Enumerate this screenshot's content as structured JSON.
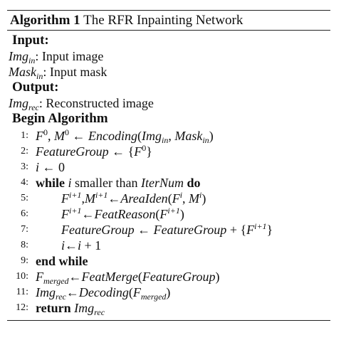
{
  "algorithm": {
    "label": "Algorithm 1",
    "title": "The RFR Inpainting Network",
    "input_header": "Input:",
    "inputs": [
      {
        "var": "Img",
        "sub": "in",
        "desc": ": Input image"
      },
      {
        "var": "Mask",
        "sub": "in",
        "desc": ": Input mask"
      }
    ],
    "output_header": "Output:",
    "outputs": [
      {
        "var": "Img",
        "sub": "rec",
        "desc": ": Reconstructed image"
      }
    ],
    "begin_header": "Begin Algorithm",
    "keywords": {
      "while": "while",
      "do": "do",
      "end_while": "end while",
      "return": "return"
    },
    "lines": [
      {
        "num": "1:",
        "text": "F^0, M^0 ← Encoding(Img_in, Mask_in)"
      },
      {
        "num": "2:",
        "text": "FeatureGroup ← {F^0}"
      },
      {
        "num": "3:",
        "text": "i ← 0"
      },
      {
        "num": "4:",
        "text": "while i smaller than IterNum do",
        "cond_text": "smaller than"
      },
      {
        "num": "5:",
        "text": "F^{i+1},M^{i+1} ← AreaIden(F^i, M^i)"
      },
      {
        "num": "6:",
        "text": "F^{i+1} ← FeatReason(F^{i+1})"
      },
      {
        "num": "7:",
        "text": "FeatureGroup ← FeatureGroup + {F^{i+1}}"
      },
      {
        "num": "8:",
        "text": "i ← i + 1"
      },
      {
        "num": "9:",
        "text": "end while"
      },
      {
        "num": "10:",
        "text": "F_merged ← FeatMerge(FeatureGroup)"
      },
      {
        "num": "11:",
        "text": "Img_rec ← Decoding(F_merged)"
      },
      {
        "num": "12:",
        "text": "return Img_rec"
      }
    ]
  }
}
